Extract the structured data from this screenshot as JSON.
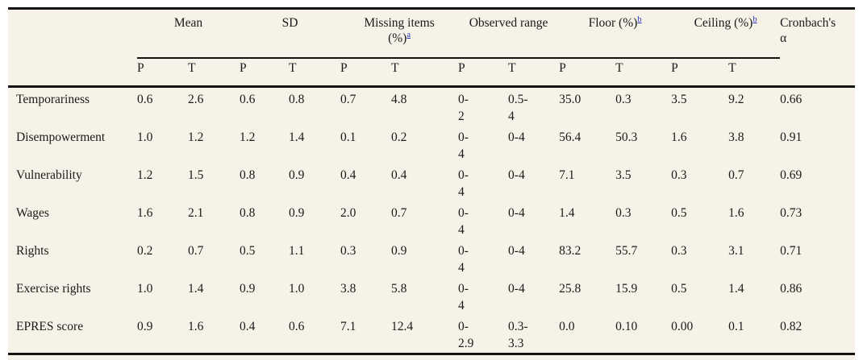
{
  "colors": {
    "background": "#f6f2e7",
    "rule": "#131313",
    "text": "#1a1a1a",
    "footnote_link": "#2433c4"
  },
  "header": {
    "groups": {
      "mean": "Mean",
      "sd": "SD",
      "missing_line1": "Missing items",
      "missing_line2": "(%)",
      "missing_sup": "a",
      "range": "Observed range",
      "floor": "Floor (%)",
      "floor_sup": "b",
      "ceiling": "Ceiling (%)",
      "ceiling_sup": "b",
      "cronbach_line1": "Cronbach's",
      "cronbach_line2": "α"
    },
    "subcols": [
      "P",
      "T",
      "P",
      "T",
      "P",
      "T",
      "P",
      "T",
      "P",
      "T",
      "P",
      "T"
    ]
  },
  "rows": [
    {
      "label": "Temporariness",
      "mean_p": "0.6",
      "mean_t": "2.6",
      "sd_p": "0.6",
      "sd_t": "0.8",
      "missing_p": "0.7",
      "missing_t": "4.8",
      "range_p": "0-2",
      "range_t": "0.5-4",
      "floor_p": "35.0",
      "floor_t": "0.3",
      "ceiling_p": "3.5",
      "ceiling_t": "9.2",
      "alpha": "0.66"
    },
    {
      "label": "Disempowerment",
      "mean_p": "1.0",
      "mean_t": "1.2",
      "sd_p": "1.2",
      "sd_t": "1.4",
      "missing_p": "0.1",
      "missing_t": "0.2",
      "range_p": "0-4",
      "range_t": "0-4",
      "floor_p": "56.4",
      "floor_t": "50.3",
      "ceiling_p": "1.6",
      "ceiling_t": "3.8",
      "alpha": "0.91"
    },
    {
      "label": "Vulnerability",
      "mean_p": "1.2",
      "mean_t": "1.5",
      "sd_p": "0.8",
      "sd_t": "0.9",
      "missing_p": "0.4",
      "missing_t": "0.4",
      "range_p": "0-4",
      "range_t": "0-4",
      "floor_p": "7.1",
      "floor_t": "3.5",
      "ceiling_p": "0.3",
      "ceiling_t": "0.7",
      "alpha": "0.69"
    },
    {
      "label": "Wages",
      "mean_p": "1.6",
      "mean_t": "2.1",
      "sd_p": "0.8",
      "sd_t": "0.9",
      "missing_p": "2.0",
      "missing_t": "0.7",
      "range_p": "0-4",
      "range_t": "0-4",
      "floor_p": "1.4",
      "floor_t": "0.3",
      "ceiling_p": "0.5",
      "ceiling_t": "1.6",
      "alpha": "0.73"
    },
    {
      "label": "Rights",
      "mean_p": "0.2",
      "mean_t": "0.7",
      "sd_p": "0.5",
      "sd_t": "1.1",
      "missing_p": "0.3",
      "missing_t": "0.9",
      "range_p": "0-4",
      "range_t": "0-4",
      "floor_p": "83.2",
      "floor_t": "55.7",
      "ceiling_p": "0.3",
      "ceiling_t": "3.1",
      "alpha": "0.71"
    },
    {
      "label": "Exercise rights",
      "mean_p": "1.0",
      "mean_t": "1.4",
      "sd_p": "0.9",
      "sd_t": "1.0",
      "missing_p": "3.8",
      "missing_t": "5.8",
      "range_p": "0-4",
      "range_t": "0-4",
      "floor_p": "25.8",
      "floor_t": "15.9",
      "ceiling_p": "0.5",
      "ceiling_t": "1.4",
      "alpha": "0.86"
    },
    {
      "label": "EPRES score",
      "mean_p": "0.9",
      "mean_t": "1.6",
      "sd_p": "0.4",
      "sd_t": "0.6",
      "missing_p": "7.1",
      "missing_t": "12.4",
      "range_p": "0-2.9",
      "range_t": "0.3-3.3",
      "floor_p": "0.0",
      "floor_t": "0.10",
      "ceiling_p": "0.00",
      "ceiling_t": "0.1",
      "alpha": "0.82"
    }
  ]
}
